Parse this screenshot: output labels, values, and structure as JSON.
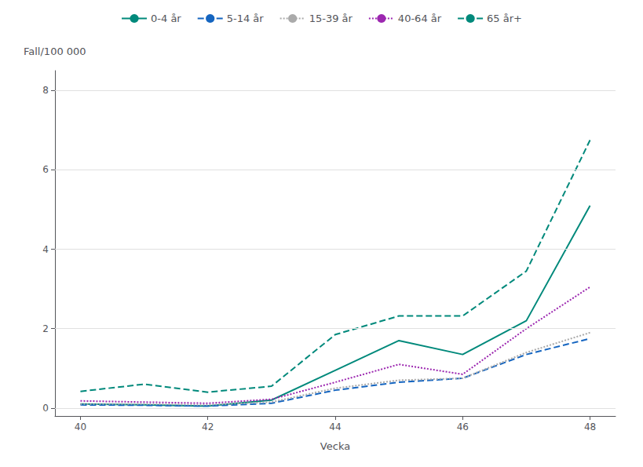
{
  "chart_data": {
    "type": "line",
    "xlabel": "Vecka",
    "ylabel": "Fall/100 000",
    "x": [
      40,
      41,
      42,
      43,
      44,
      45,
      46,
      47,
      48
    ],
    "series": [
      {
        "name": "0-4 år",
        "color": "#00897B",
        "line_style": "solid",
        "values": [
          0.1,
          0.08,
          0.05,
          0.2,
          0.95,
          1.7,
          1.35,
          2.2,
          5.1
        ]
      },
      {
        "name": "5-14 år",
        "color": "#1565C0",
        "line_style": "dashed",
        "values": [
          0.08,
          0.07,
          0.05,
          0.12,
          0.45,
          0.65,
          0.75,
          1.35,
          1.75
        ]
      },
      {
        "name": "15-39 år",
        "color": "#aaaaaa",
        "line_style": "dotted",
        "values": [
          0.1,
          0.1,
          0.08,
          0.15,
          0.5,
          0.7,
          0.75,
          1.4,
          1.9
        ]
      },
      {
        "name": "40-64 år",
        "color": "#9C27B0",
        "line_style": "dotted",
        "values": [
          0.18,
          0.15,
          0.12,
          0.22,
          0.65,
          1.1,
          0.85,
          2.0,
          3.05
        ]
      },
      {
        "name": "65 år+",
        "color": "#00897B",
        "line_style": "dashed",
        "values": [
          0.42,
          0.6,
          0.4,
          0.55,
          1.85,
          2.32,
          2.32,
          3.45,
          6.75
        ]
      }
    ],
    "xlim": [
      39.6,
      48.4
    ],
    "xticks": [
      40,
      42,
      44,
      46,
      48
    ],
    "ylim": [
      -0.2,
      8.5
    ],
    "yticks": [
      0,
      2,
      4,
      6,
      8
    ],
    "grid": true,
    "legend": "top"
  }
}
